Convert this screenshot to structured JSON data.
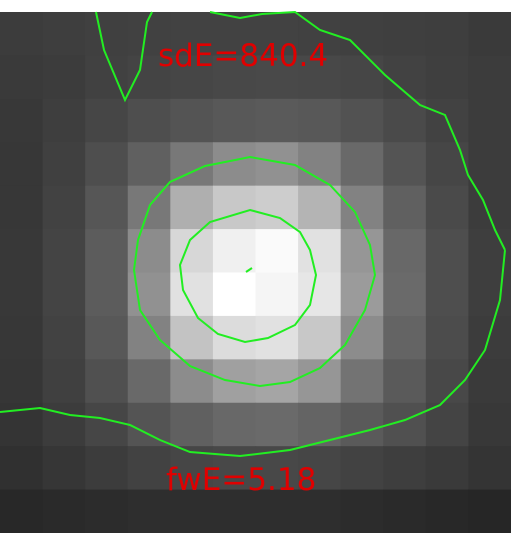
{
  "image": {
    "grid_cols": 12,
    "grid_rows": 12,
    "pixel_values": [
      [
        60,
        62,
        64,
        65,
        66,
        66,
        66,
        65,
        64,
        63,
        62,
        58
      ],
      [
        58,
        60,
        65,
        68,
        70,
        72,
        73,
        72,
        70,
        66,
        63,
        60
      ],
      [
        56,
        62,
        70,
        78,
        84,
        88,
        90,
        88,
        82,
        74,
        66,
        60
      ],
      [
        55,
        64,
        78,
        96,
        120,
        140,
        145,
        130,
        105,
        84,
        70,
        60
      ],
      [
        55,
        66,
        86,
        120,
        175,
        200,
        205,
        180,
        130,
        96,
        74,
        60
      ],
      [
        56,
        68,
        92,
        140,
        215,
        240,
        250,
        225,
        150,
        104,
        78,
        62
      ],
      [
        56,
        68,
        92,
        145,
        225,
        255,
        245,
        230,
        155,
        106,
        78,
        62
      ],
      [
        55,
        66,
        88,
        130,
        195,
        220,
        225,
        200,
        140,
        100,
        76,
        60
      ],
      [
        54,
        64,
        80,
        105,
        140,
        160,
        165,
        150,
        115,
        90,
        72,
        58
      ],
      [
        52,
        60,
        70,
        84,
        96,
        104,
        106,
        100,
        90,
        80,
        68,
        56
      ],
      [
        48,
        54,
        60,
        66,
        70,
        72,
        72,
        70,
        66,
        62,
        58,
        52
      ],
      [
        40,
        42,
        44,
        46,
        46,
        46,
        46,
        46,
        44,
        42,
        40,
        38
      ]
    ]
  },
  "annotations": {
    "sd_label": "sdE=840.4",
    "fw_label": "fwE=5.18",
    "label_color": "#e00000",
    "contour_color": "#22ee22"
  }
}
